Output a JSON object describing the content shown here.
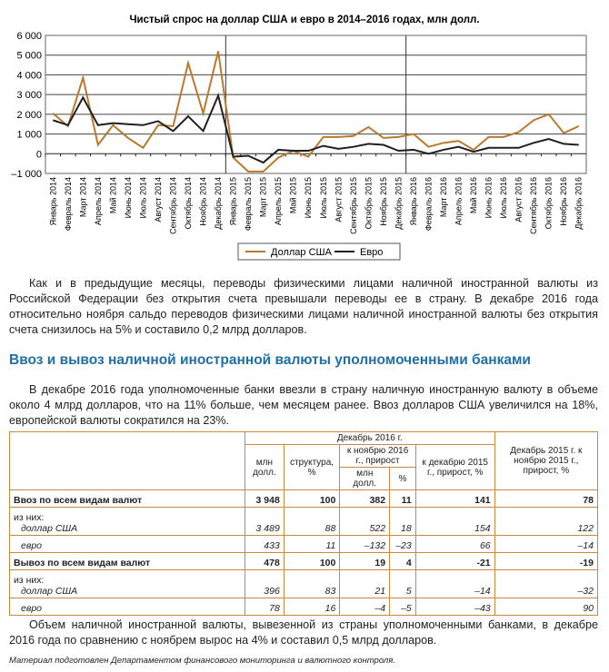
{
  "chart_data": {
    "type": "line",
    "title": "Чистый спрос на доллар США и евро в 2014–2016 годах, млн долл.",
    "ylim": [
      -1000,
      6000
    ],
    "yticks": [
      "6 000",
      "5 000",
      "4 000",
      "3 000",
      "2 000",
      "1 000",
      "0",
      "–1 000"
    ],
    "categories": [
      "Январь 2014",
      "Февраль 2014",
      "Март 2014",
      "Апрель 2014",
      "Май 2014",
      "Июнь 2014",
      "Июль 2014",
      "Август 2014",
      "Сентябрь 2014",
      "Октябрь 2014",
      "Ноябрь 2014",
      "Декабрь 2014",
      "Январь 2015",
      "Февраль 2015",
      "Март 2015",
      "Апрель 2015",
      "Май 2015",
      "Июнь 2015",
      "Июль 2015",
      "Август 2015",
      "Сентябрь 2015",
      "Октябрь 2015",
      "Ноябрь 2015",
      "Декабрь 2015",
      "Январь 2016",
      "Февраль 2016",
      "Март 2016",
      "Апрель 2016",
      "Май 2016",
      "Июнь 2016",
      "Июль 2016",
      "Август 2016",
      "Сентябрь 2016",
      "Октябрь 2016",
      "Ноябрь 2016",
      "Декабрь 2016"
    ],
    "series": [
      {
        "name": "Доллар США",
        "color": "#b87a2e",
        "values": [
          2050,
          1400,
          3850,
          450,
          1450,
          800,
          300,
          1450,
          1400,
          4600,
          2050,
          5200,
          -200,
          -900,
          -900,
          -200,
          150,
          -150,
          850,
          850,
          900,
          1350,
          800,
          850,
          1000,
          350,
          550,
          650,
          200,
          850,
          850,
          1100,
          1700,
          2000,
          1050,
          1400
        ]
      },
      {
        "name": "Евро",
        "color": "#231f20",
        "values": [
          1700,
          1450,
          2850,
          1450,
          1550,
          1500,
          1450,
          1650,
          1150,
          1900,
          1150,
          2950,
          -150,
          -100,
          -450,
          200,
          150,
          150,
          400,
          250,
          350,
          500,
          450,
          150,
          200,
          0,
          200,
          350,
          100,
          300,
          300,
          300,
          550,
          750,
          500,
          450
        ]
      }
    ],
    "grid": true,
    "legend": "bottom"
  },
  "text": {
    "p1": "Как и в предыдущие месяцы, переводы физическими лицами наличной иностранной валюты из Российской Федерации без открытия счета превышали переводы ее в страну. В декабре 2016 года относительно ноября сальдо переводов физическими лицами наличной иностранной валюты без открытия счета снизилось на 5% и составило 0,2 млрд долларов.",
    "heading": "Ввоз и вывоз наличной иностранной валюты уполномоченными банками",
    "p2": "В декабре 2016 года уполномоченные банки ввезли в страну наличную иностранную валюту в объеме около 4 млрд долларов, что на 11% больше, чем месяцем ранее. Ввоз долларов США увеличился на 18%, европейской валюты сократился на 23%.",
    "p3": "Объем наличной иностранной валюты, вывезенной из страны уполномоченными банками, в декабре 2016 года по сравнению с ноябрем вырос на 4% и составил 0,5 млрд долларов.",
    "footer": "Материал подготовлен Департаментом финансового мониторинга и валютного контроля."
  },
  "table": {
    "h_dec2016": "Декабрь 2016 г.",
    "h_dec2015": "Декабрь 2015 г. к ноябрю 2015 г., прирост, %",
    "h_mln": "млн долл.",
    "h_struct": "структура, %",
    "h_nov": "к ноябрю 2016 г., прирост",
    "h_dec": "к декабрю 2015 г., прирост, %",
    "h_mln2": "млн долл.",
    "h_pct": "%",
    "rows": [
      {
        "label": "Ввоз по всем видам валют",
        "bold": true,
        "v": [
          "3 948",
          "100",
          "382",
          "11",
          "141",
          "78"
        ]
      },
      {
        "pre": "из них:",
        "label": "доллар США",
        "v": [
          "3 489",
          "88",
          "522",
          "18",
          "154",
          "122"
        ]
      },
      {
        "label": "евро",
        "v": [
          "433",
          "11",
          "–132",
          "–23",
          "66",
          "–14"
        ]
      },
      {
        "label": "Вывоз по всем видам валют",
        "bold": true,
        "v": [
          "478",
          "100",
          "19",
          "4",
          "-21",
          "-19"
        ]
      },
      {
        "pre": "из них:",
        "label": "доллар США",
        "v": [
          "396",
          "83",
          "21",
          "5",
          "–14",
          "–32"
        ]
      },
      {
        "label": "евро",
        "v": [
          "78",
          "16",
          "–4",
          "–5",
          "–43",
          "90"
        ]
      }
    ]
  }
}
